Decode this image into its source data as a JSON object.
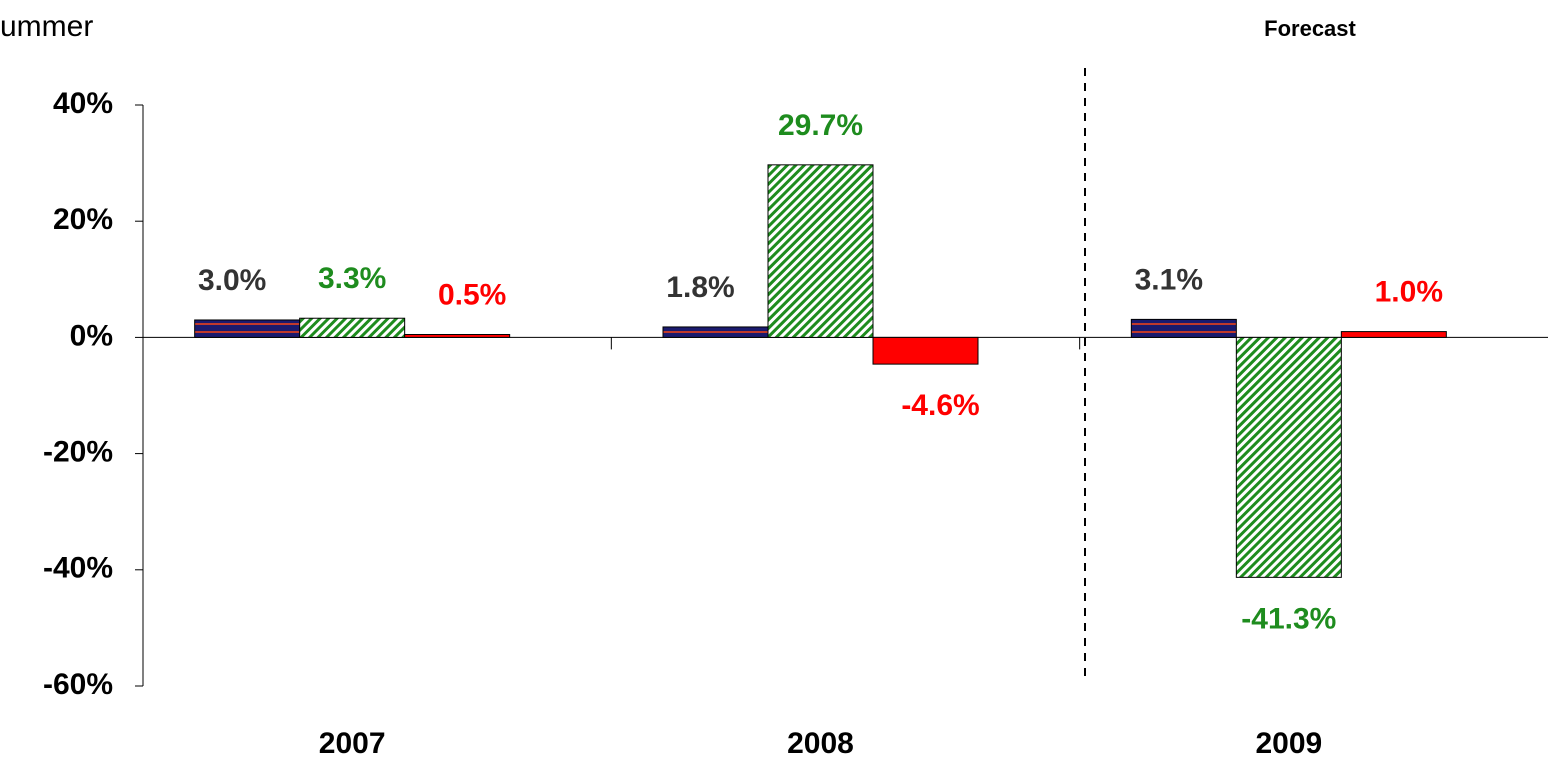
{
  "chart_data": {
    "type": "bar",
    "title": "ummer",
    "annotation": "Forecast",
    "categories": [
      "2007",
      "2008",
      "2009"
    ],
    "series": [
      {
        "color": "#1a1a6e",
        "pattern": "stripes",
        "label_color": "#333333",
        "values": [
          3.0,
          1.8,
          3.1
        ],
        "value_labels": [
          "3.0%",
          "1.8%",
          "3.1%"
        ]
      },
      {
        "color": "#1e8c1e",
        "pattern": "hatch",
        "label_color": "#1e8c1e",
        "values": [
          3.3,
          29.7,
          -41.3
        ],
        "value_labels": [
          "3.3%",
          "29.7%",
          "-41.3%"
        ]
      },
      {
        "color": "#ff0000",
        "pattern": "solid",
        "label_color": "#ff0000",
        "values": [
          0.5,
          -4.6,
          1.0
        ],
        "value_labels": [
          "0.5%",
          "-4.6%",
          "1.0%"
        ]
      }
    ],
    "ylim": [
      -60,
      40
    ],
    "yticks": [
      {
        "value": -60,
        "label": "-60%"
      },
      {
        "value": -40,
        "label": "-40%"
      },
      {
        "value": -20,
        "label": "-20%"
      },
      {
        "value": 0,
        "label": "0%"
      },
      {
        "value": 20,
        "label": "20%"
      },
      {
        "value": 40,
        "label": "40%"
      }
    ],
    "grid": false
  }
}
